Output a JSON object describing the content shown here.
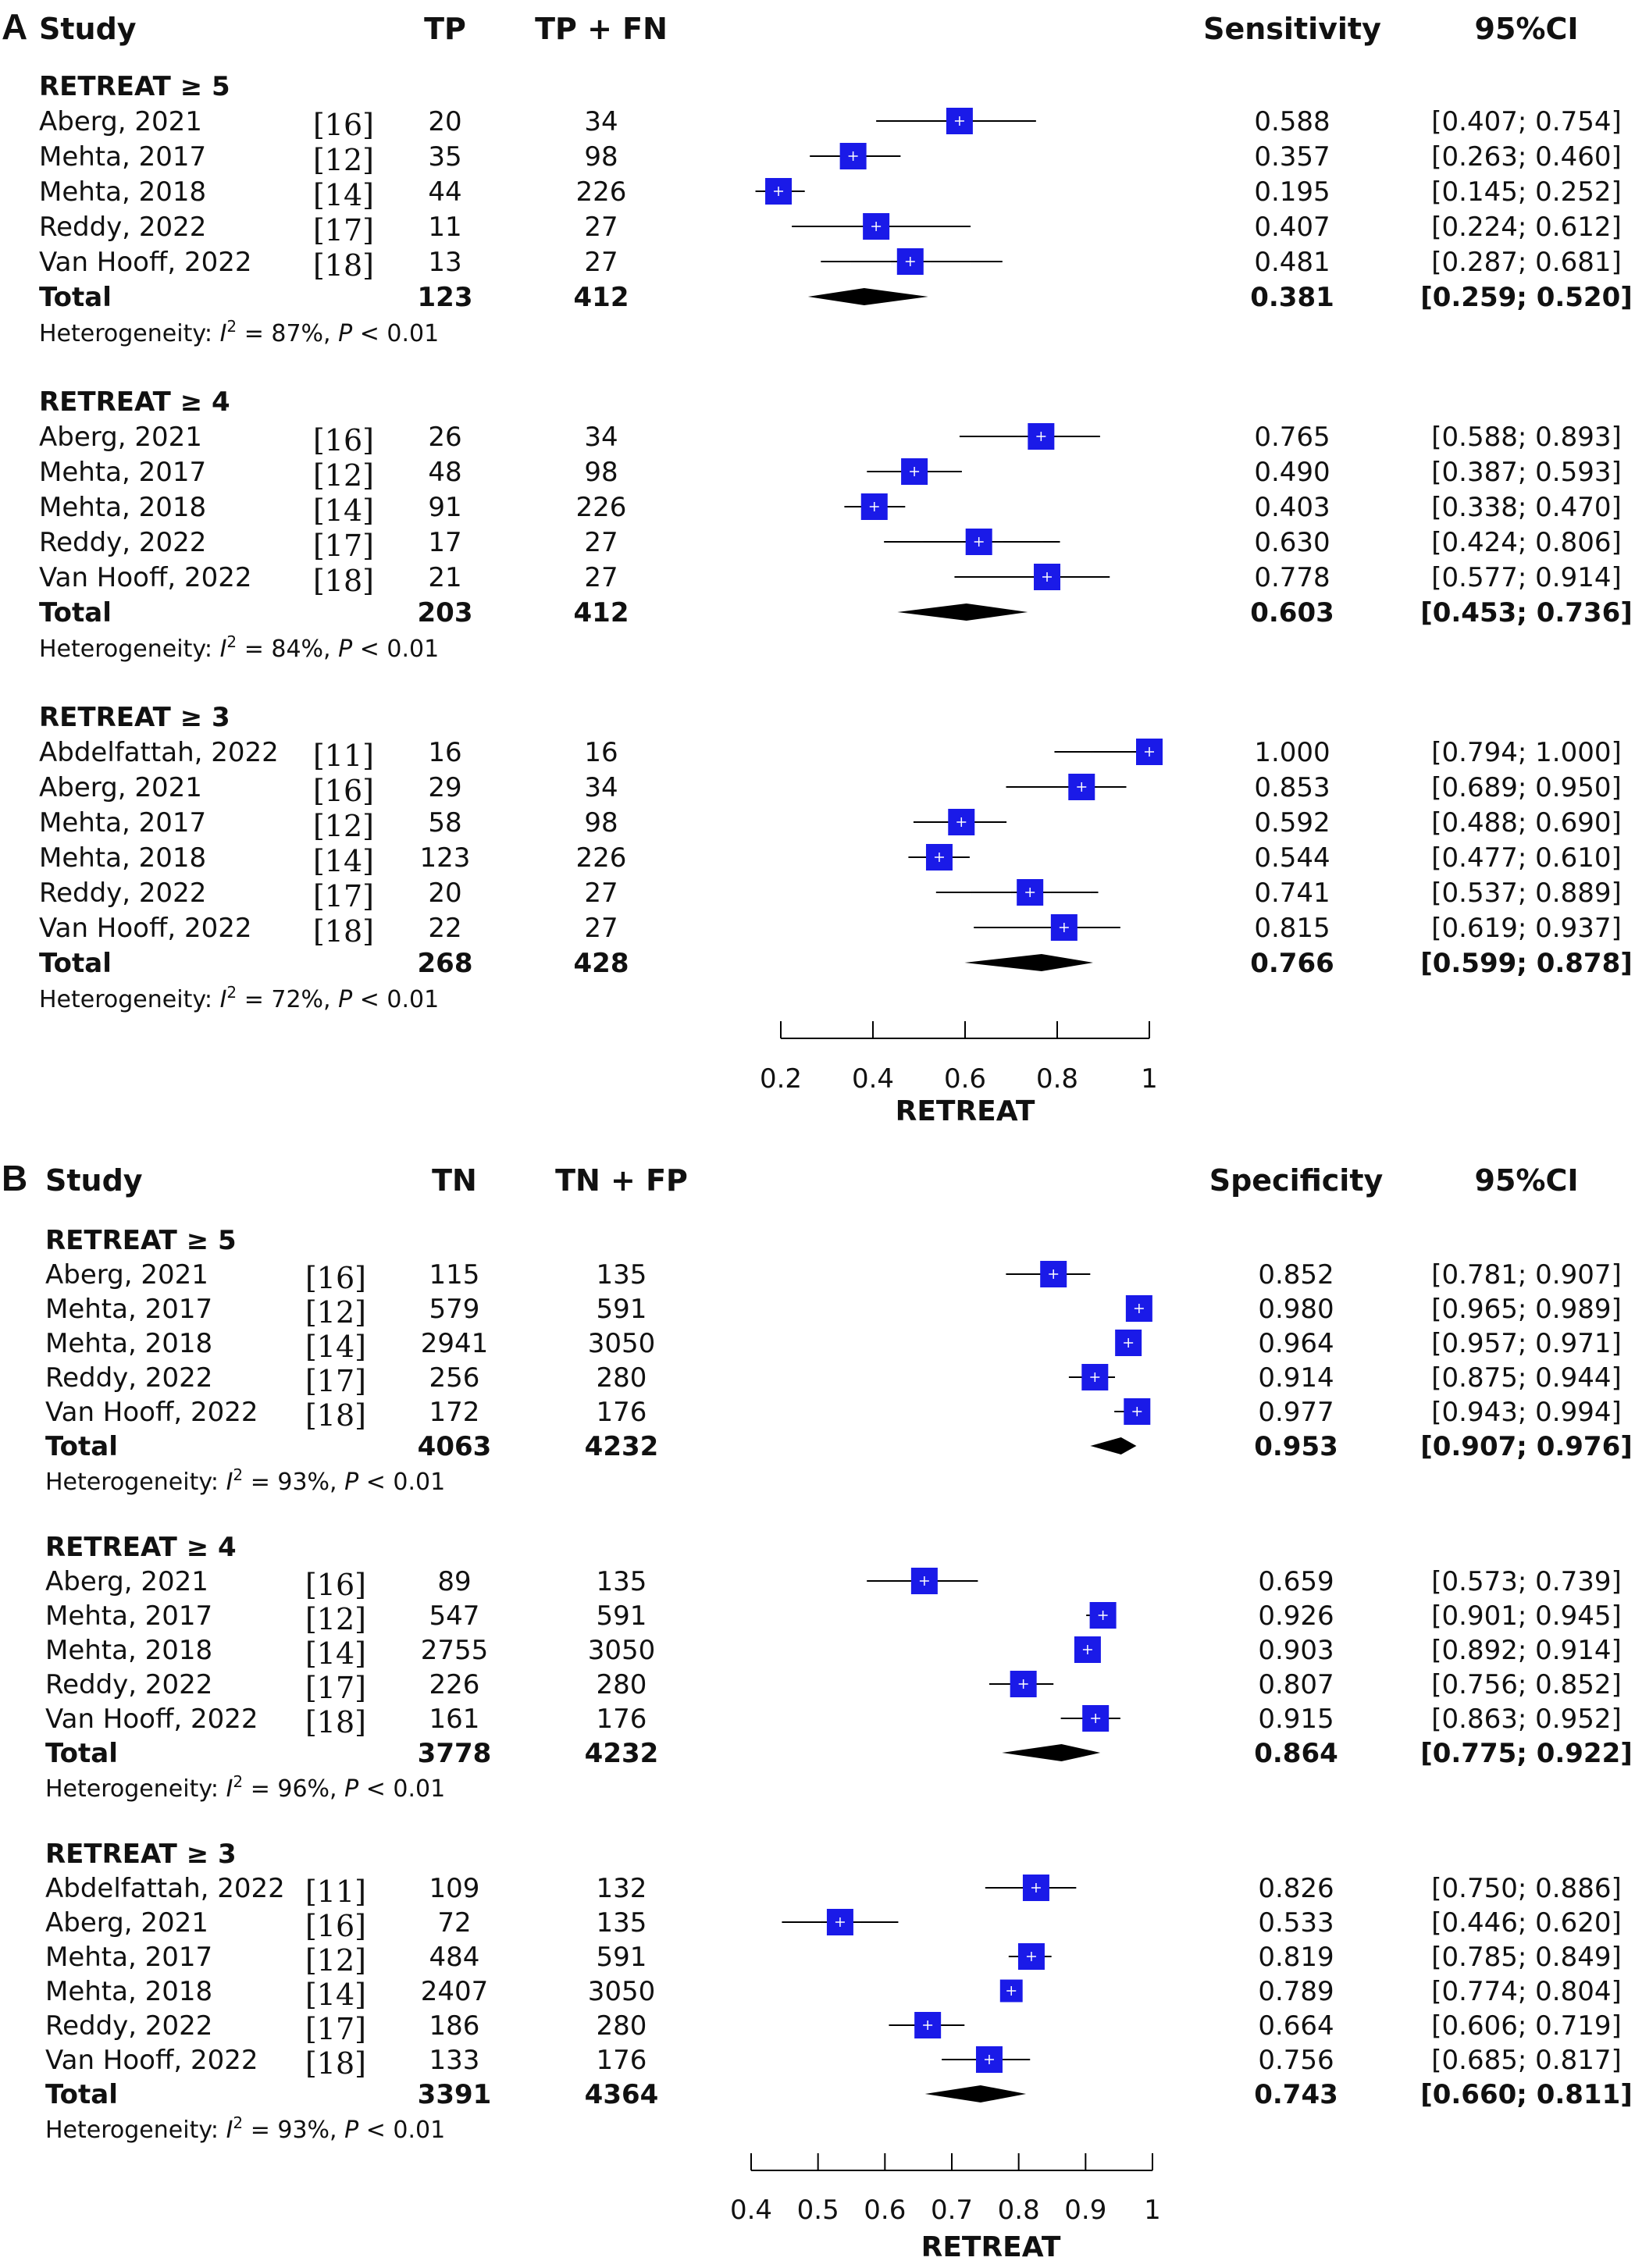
{
  "chart_data": [
    {
      "type": "forest",
      "panel_label": "A",
      "headers": {
        "study": "Study",
        "count": "TP",
        "total": "TP + FN",
        "estimate": "Sensitivity",
        "ci": "95%CI"
      },
      "xlabel": "RETREAT",
      "xlim": [
        0.2,
        1
      ],
      "ticks": [
        "0.2",
        "0.4",
        "0.6",
        "0.8",
        "1"
      ],
      "tick_values": [
        0.2,
        0.4,
        0.6,
        0.8,
        1
      ],
      "subgroups": [
        {
          "title": "RETREAT ≥ 5",
          "studies": [
            {
              "name": "Aberg, 2021",
              "ref": "[16]",
              "count": "20",
              "total": "34",
              "est": 0.588,
              "lo": 0.407,
              "hi": 0.754,
              "est_label": "0.588",
              "ci_label": "[0.407; 0.754]",
              "weight": 1.0
            },
            {
              "name": "Mehta, 2017",
              "ref": "[12]",
              "count": "35",
              "total": "98",
              "est": 0.357,
              "lo": 0.263,
              "hi": 0.46,
              "est_label": "0.357",
              "ci_label": "[0.263; 0.460]",
              "weight": 1.0
            },
            {
              "name": "Mehta, 2018",
              "ref": "[14]",
              "count": "44",
              "total": "226",
              "est": 0.195,
              "lo": 0.145,
              "hi": 0.252,
              "est_label": "0.195",
              "ci_label": "[0.145; 0.252]",
              "weight": 1.0
            },
            {
              "name": "Reddy, 2022",
              "ref": "[17]",
              "count": "11",
              "total": "27",
              "est": 0.407,
              "lo": 0.224,
              "hi": 0.612,
              "est_label": "0.407",
              "ci_label": "[0.224; 0.612]",
              "weight": 1.0
            },
            {
              "name": "Van Hooff, 2022",
              "ref": "[18]",
              "count": "13",
              "total": "27",
              "est": 0.481,
              "lo": 0.287,
              "hi": 0.681,
              "est_label": "0.481",
              "ci_label": "[0.287; 0.681]",
              "weight": 1.0
            }
          ],
          "total": {
            "label": "Total",
            "count": "123",
            "total": "412",
            "est": 0.381,
            "lo": 0.259,
            "hi": 0.52,
            "est_label": "0.381",
            "ci_label": "[0.259; 0.520]"
          },
          "heterogeneity": {
            "prefix": "Heterogeneity: ",
            "i": "I",
            "sup": "2",
            "mid": " = 87%, ",
            "p": "P",
            "suffix": " < 0.01"
          }
        },
        {
          "title": "RETREAT ≥ 4",
          "studies": [
            {
              "name": "Aberg, 2021",
              "ref": "[16]",
              "count": "26",
              "total": "34",
              "est": 0.765,
              "lo": 0.588,
              "hi": 0.893,
              "est_label": "0.765",
              "ci_label": "[0.588; 0.893]",
              "weight": 1.0
            },
            {
              "name": "Mehta, 2017",
              "ref": "[12]",
              "count": "48",
              "total": "98",
              "est": 0.49,
              "lo": 0.387,
              "hi": 0.593,
              "est_label": "0.490",
              "ci_label": "[0.387; 0.593]",
              "weight": 1.0
            },
            {
              "name": "Mehta, 2018",
              "ref": "[14]",
              "count": "91",
              "total": "226",
              "est": 0.403,
              "lo": 0.338,
              "hi": 0.47,
              "est_label": "0.403",
              "ci_label": "[0.338; 0.470]",
              "weight": 1.0
            },
            {
              "name": "Reddy, 2022",
              "ref": "[17]",
              "count": "17",
              "total": "27",
              "est": 0.63,
              "lo": 0.424,
              "hi": 0.806,
              "est_label": "0.630",
              "ci_label": "[0.424; 0.806]",
              "weight": 1.0
            },
            {
              "name": "Van Hooff, 2022",
              "ref": "[18]",
              "count": "21",
              "total": "27",
              "est": 0.778,
              "lo": 0.577,
              "hi": 0.914,
              "est_label": "0.778",
              "ci_label": "[0.577; 0.914]",
              "weight": 1.0
            }
          ],
          "total": {
            "label": "Total",
            "count": "203",
            "total": "412",
            "est": 0.603,
            "lo": 0.453,
            "hi": 0.736,
            "est_label": "0.603",
            "ci_label": "[0.453; 0.736]"
          },
          "heterogeneity": {
            "prefix": "Heterogeneity: ",
            "i": "I",
            "sup": "2",
            "mid": " = 84%, ",
            "p": "P",
            "suffix": " < 0.01"
          }
        },
        {
          "title": "RETREAT ≥ 3",
          "studies": [
            {
              "name": "Abdelfattah, 2022",
              "ref": "[11]",
              "count": "16",
              "total": "16",
              "est": 1.0,
              "lo": 0.794,
              "hi": 1.0,
              "est_label": "1.000",
              "ci_label": "[0.794; 1.000]",
              "weight": 1.0
            },
            {
              "name": "Aberg, 2021",
              "ref": "[16]",
              "count": "29",
              "total": "34",
              "est": 0.853,
              "lo": 0.689,
              "hi": 0.95,
              "est_label": "0.853",
              "ci_label": "[0.689; 0.950]",
              "weight": 1.0
            },
            {
              "name": "Mehta, 2017",
              "ref": "[12]",
              "count": "58",
              "total": "98",
              "est": 0.592,
              "lo": 0.488,
              "hi": 0.69,
              "est_label": "0.592",
              "ci_label": "[0.488; 0.690]",
              "weight": 1.0
            },
            {
              "name": "Mehta, 2018",
              "ref": "[14]",
              "count": "123",
              "total": "226",
              "est": 0.544,
              "lo": 0.477,
              "hi": 0.61,
              "est_label": "0.544",
              "ci_label": "[0.477; 0.610]",
              "weight": 1.0
            },
            {
              "name": "Reddy, 2022",
              "ref": "[17]",
              "count": "20",
              "total": "27",
              "est": 0.741,
              "lo": 0.537,
              "hi": 0.889,
              "est_label": "0.741",
              "ci_label": "[0.537; 0.889]",
              "weight": 1.0
            },
            {
              "name": "Van Hooff, 2022",
              "ref": "[18]",
              "count": "22",
              "total": "27",
              "est": 0.815,
              "lo": 0.619,
              "hi": 0.937,
              "est_label": "0.815",
              "ci_label": "[0.619; 0.937]",
              "weight": 1.0
            }
          ],
          "total": {
            "label": "Total",
            "count": "268",
            "total": "428",
            "est": 0.766,
            "lo": 0.599,
            "hi": 0.878,
            "est_label": "0.766",
            "ci_label": "[0.599; 0.878]"
          },
          "heterogeneity": {
            "prefix": "Heterogeneity: ",
            "i": "I",
            "sup": "2",
            "mid": " = 72%, ",
            "p": "P",
            "suffix": " < 0.01"
          }
        }
      ]
    },
    {
      "type": "forest",
      "panel_label": "B",
      "headers": {
        "study": "Study",
        "count": "TN",
        "total": "TN + FP",
        "estimate": "Specificity",
        "ci": "95%CI"
      },
      "xlabel": "RETREAT",
      "xlim": [
        0.4,
        1
      ],
      "ticks": [
        "0.4",
        "0.5",
        "0.6",
        "0.7",
        "0.8",
        "0.9",
        "1"
      ],
      "tick_values": [
        0.4,
        0.5,
        0.6,
        0.7,
        0.8,
        0.9,
        1
      ],
      "subgroups": [
        {
          "title": "RETREAT ≥ 5",
          "studies": [
            {
              "name": "Aberg, 2021",
              "ref": "[16]",
              "count": "115",
              "total": "135",
              "est": 0.852,
              "lo": 0.781,
              "hi": 0.907,
              "est_label": "0.852",
              "ci_label": "[0.781; 0.907]",
              "weight": 1.0
            },
            {
              "name": "Mehta, 2017",
              "ref": "[12]",
              "count": "579",
              "total": "591",
              "est": 0.98,
              "lo": 0.965,
              "hi": 0.989,
              "est_label": "0.980",
              "ci_label": "[0.965; 0.989]",
              "weight": 1.0
            },
            {
              "name": "Mehta, 2018",
              "ref": "[14]",
              "count": "2941",
              "total": "3050",
              "est": 0.964,
              "lo": 0.957,
              "hi": 0.971,
              "est_label": "0.964",
              "ci_label": "[0.957; 0.971]",
              "weight": 1.0
            },
            {
              "name": "Reddy, 2022",
              "ref": "[17]",
              "count": "256",
              "total": "280",
              "est": 0.914,
              "lo": 0.875,
              "hi": 0.944,
              "est_label": "0.914",
              "ci_label": "[0.875; 0.944]",
              "weight": 1.0
            },
            {
              "name": "Van Hooff, 2022",
              "ref": "[18]",
              "count": "172",
              "total": "176",
              "est": 0.977,
              "lo": 0.943,
              "hi": 0.994,
              "est_label": "0.977",
              "ci_label": "[0.943; 0.994]",
              "weight": 1.0
            }
          ],
          "total": {
            "label": "Total",
            "count": "4063",
            "total": "4232",
            "est": 0.953,
            "lo": 0.907,
            "hi": 0.976,
            "est_label": "0.953",
            "ci_label": "[0.907; 0.976]"
          },
          "heterogeneity": {
            "prefix": "Heterogeneity: ",
            "i": "I",
            "sup": "2",
            "mid": " = 93%, ",
            "p": "P",
            "suffix": " < 0.01"
          }
        },
        {
          "title": "RETREAT ≥ 4",
          "studies": [
            {
              "name": "Aberg, 2021",
              "ref": "[16]",
              "count": "89",
              "total": "135",
              "est": 0.659,
              "lo": 0.573,
              "hi": 0.739,
              "est_label": "0.659",
              "ci_label": "[0.573; 0.739]",
              "weight": 1.0
            },
            {
              "name": "Mehta, 2017",
              "ref": "[12]",
              "count": "547",
              "total": "591",
              "est": 0.926,
              "lo": 0.901,
              "hi": 0.945,
              "est_label": "0.926",
              "ci_label": "[0.901; 0.945]",
              "weight": 1.0
            },
            {
              "name": "Mehta, 2018",
              "ref": "[14]",
              "count": "2755",
              "total": "3050",
              "est": 0.903,
              "lo": 0.892,
              "hi": 0.914,
              "est_label": "0.903",
              "ci_label": "[0.892; 0.914]",
              "weight": 1.0
            },
            {
              "name": "Reddy, 2022",
              "ref": "[17]",
              "count": "226",
              "total": "280",
              "est": 0.807,
              "lo": 0.756,
              "hi": 0.852,
              "est_label": "0.807",
              "ci_label": "[0.756; 0.852]",
              "weight": 1.0
            },
            {
              "name": "Van Hooff, 2022",
              "ref": "[18]",
              "count": "161",
              "total": "176",
              "est": 0.915,
              "lo": 0.863,
              "hi": 0.952,
              "est_label": "0.915",
              "ci_label": "[0.863; 0.952]",
              "weight": 1.0
            }
          ],
          "total": {
            "label": "Total",
            "count": "3778",
            "total": "4232",
            "est": 0.864,
            "lo": 0.775,
            "hi": 0.922,
            "est_label": "0.864",
            "ci_label": "[0.775; 0.922]"
          },
          "heterogeneity": {
            "prefix": "Heterogeneity: ",
            "i": "I",
            "sup": "2",
            "mid": " = 96%, ",
            "p": "P",
            "suffix": " < 0.01"
          }
        },
        {
          "title": "RETREAT ≥ 3",
          "studies": [
            {
              "name": "Abdelfattah, 2022",
              "ref": "[11]",
              "count": "109",
              "total": "132",
              "est": 0.826,
              "lo": 0.75,
              "hi": 0.886,
              "est_label": "0.826",
              "ci_label": "[0.750; 0.886]",
              "weight": 1.0
            },
            {
              "name": "Aberg, 2021",
              "ref": "[16]",
              "count": "72",
              "total": "135",
              "est": 0.533,
              "lo": 0.446,
              "hi": 0.62,
              "est_label": "0.533",
              "ci_label": "[0.446; 0.620]",
              "weight": 1.0
            },
            {
              "name": "Mehta, 2017",
              "ref": "[12]",
              "count": "484",
              "total": "591",
              "est": 0.819,
              "lo": 0.785,
              "hi": 0.849,
              "est_label": "0.819",
              "ci_label": "[0.785; 0.849]",
              "weight": 1.0
            },
            {
              "name": "Mehta, 2018",
              "ref": "[14]",
              "count": "2407",
              "total": "3050",
              "est": 0.789,
              "lo": 0.774,
              "hi": 0.804,
              "est_label": "0.789",
              "ci_label": "[0.774; 0.804]",
              "weight": 0.85
            },
            {
              "name": "Reddy, 2022",
              "ref": "[17]",
              "count": "186",
              "total": "280",
              "est": 0.664,
              "lo": 0.606,
              "hi": 0.719,
              "est_label": "0.664",
              "ci_label": "[0.606; 0.719]",
              "weight": 1.0
            },
            {
              "name": "Van Hooff, 2022",
              "ref": "[18]",
              "count": "133",
              "total": "176",
              "est": 0.756,
              "lo": 0.685,
              "hi": 0.817,
              "est_label": "0.756",
              "ci_label": "[0.685; 0.817]",
              "weight": 1.0
            }
          ],
          "total": {
            "label": "Total",
            "count": "3391",
            "total": "4364",
            "est": 0.743,
            "lo": 0.66,
            "hi": 0.811,
            "est_label": "0.743",
            "ci_label": "[0.660; 0.811]"
          },
          "heterogeneity": {
            "prefix": "Heterogeneity: ",
            "i": "I",
            "sup": "2",
            "mid": " = 93%, ",
            "p": "P",
            "suffix": " < 0.01"
          }
        }
      ]
    }
  ],
  "colors": {
    "box": "#1a1ae8",
    "diamond": "#000000",
    "line": "#000000",
    "text": "#111111"
  }
}
